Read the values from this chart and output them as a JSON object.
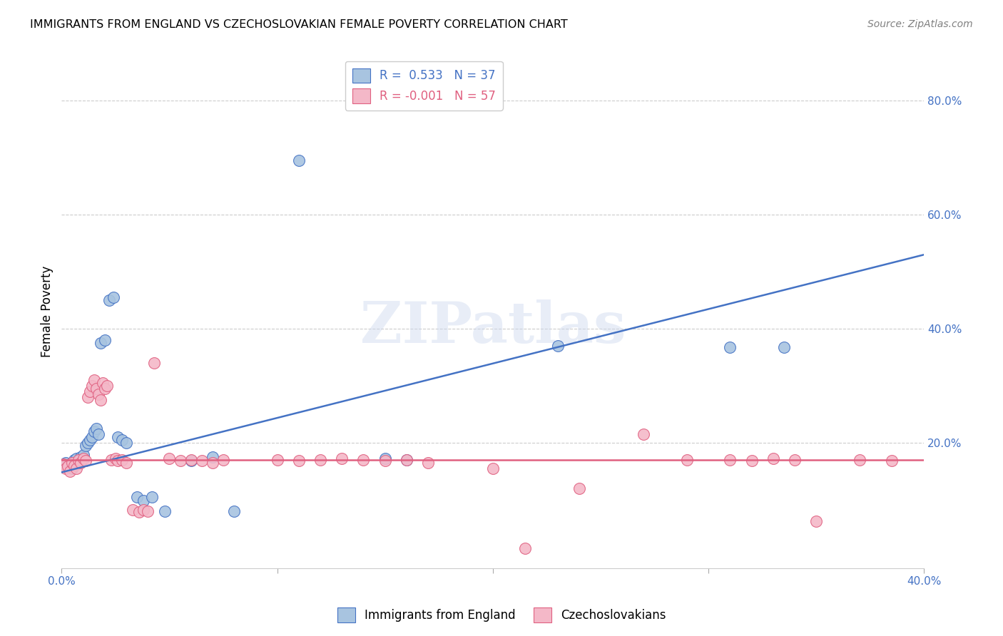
{
  "title": "IMMIGRANTS FROM ENGLAND VS CZECHOSLOVAKIAN FEMALE POVERTY CORRELATION CHART",
  "source": "Source: ZipAtlas.com",
  "ylabel": "Female Poverty",
  "xlim": [
    0.0,
    0.4
  ],
  "ylim": [
    -0.02,
    0.88
  ],
  "blue_color": "#a8c4e0",
  "pink_color": "#f4b8c8",
  "blue_line_color": "#4472c4",
  "pink_line_color": "#e06080",
  "legend_r1": "R =  0.533   N = 37",
  "legend_r2": "R = -0.001   N = 57",
  "watermark": "ZIPatlas",
  "england_points": [
    [
      0.001,
      0.16
    ],
    [
      0.002,
      0.165
    ],
    [
      0.003,
      0.158
    ],
    [
      0.004,
      0.162
    ],
    [
      0.005,
      0.155
    ],
    [
      0.006,
      0.17
    ],
    [
      0.007,
      0.172
    ],
    [
      0.008,
      0.168
    ],
    [
      0.009,
      0.175
    ],
    [
      0.01,
      0.178
    ],
    [
      0.011,
      0.195
    ],
    [
      0.012,
      0.2
    ],
    [
      0.013,
      0.205
    ],
    [
      0.014,
      0.21
    ],
    [
      0.015,
      0.22
    ],
    [
      0.016,
      0.225
    ],
    [
      0.017,
      0.215
    ],
    [
      0.018,
      0.375
    ],
    [
      0.02,
      0.38
    ],
    [
      0.022,
      0.45
    ],
    [
      0.024,
      0.455
    ],
    [
      0.026,
      0.21
    ],
    [
      0.028,
      0.205
    ],
    [
      0.03,
      0.2
    ],
    [
      0.035,
      0.105
    ],
    [
      0.038,
      0.098
    ],
    [
      0.042,
      0.105
    ],
    [
      0.048,
      0.08
    ],
    [
      0.06,
      0.168
    ],
    [
      0.07,
      0.175
    ],
    [
      0.08,
      0.08
    ],
    [
      0.11,
      0.695
    ],
    [
      0.15,
      0.172
    ],
    [
      0.16,
      0.17
    ],
    [
      0.23,
      0.37
    ],
    [
      0.31,
      0.368
    ],
    [
      0.335,
      0.368
    ]
  ],
  "czech_points": [
    [
      0.001,
      0.162
    ],
    [
      0.002,
      0.155
    ],
    [
      0.003,
      0.158
    ],
    [
      0.004,
      0.15
    ],
    [
      0.005,
      0.165
    ],
    [
      0.006,
      0.16
    ],
    [
      0.007,
      0.155
    ],
    [
      0.008,
      0.17
    ],
    [
      0.009,
      0.165
    ],
    [
      0.01,
      0.172
    ],
    [
      0.011,
      0.168
    ],
    [
      0.012,
      0.28
    ],
    [
      0.013,
      0.29
    ],
    [
      0.014,
      0.3
    ],
    [
      0.015,
      0.31
    ],
    [
      0.016,
      0.295
    ],
    [
      0.017,
      0.285
    ],
    [
      0.018,
      0.275
    ],
    [
      0.019,
      0.305
    ],
    [
      0.02,
      0.295
    ],
    [
      0.021,
      0.3
    ],
    [
      0.023,
      0.17
    ],
    [
      0.025,
      0.172
    ],
    [
      0.026,
      0.168
    ],
    [
      0.028,
      0.17
    ],
    [
      0.03,
      0.165
    ],
    [
      0.033,
      0.082
    ],
    [
      0.036,
      0.078
    ],
    [
      0.038,
      0.082
    ],
    [
      0.04,
      0.08
    ],
    [
      0.043,
      0.34
    ],
    [
      0.05,
      0.172
    ],
    [
      0.055,
      0.168
    ],
    [
      0.06,
      0.17
    ],
    [
      0.065,
      0.168
    ],
    [
      0.07,
      0.165
    ],
    [
      0.075,
      0.17
    ],
    [
      0.1,
      0.17
    ],
    [
      0.11,
      0.168
    ],
    [
      0.12,
      0.17
    ],
    [
      0.13,
      0.172
    ],
    [
      0.14,
      0.17
    ],
    [
      0.15,
      0.168
    ],
    [
      0.16,
      0.17
    ],
    [
      0.17,
      0.165
    ],
    [
      0.2,
      0.155
    ],
    [
      0.215,
      0.015
    ],
    [
      0.24,
      0.12
    ],
    [
      0.27,
      0.215
    ],
    [
      0.29,
      0.17
    ],
    [
      0.31,
      0.17
    ],
    [
      0.32,
      0.168
    ],
    [
      0.33,
      0.172
    ],
    [
      0.34,
      0.17
    ],
    [
      0.35,
      0.062
    ],
    [
      0.37,
      0.17
    ],
    [
      0.385,
      0.168
    ]
  ],
  "england_line_x": [
    0.0,
    0.4
  ],
  "england_line_y": [
    0.148,
    0.53
  ],
  "czech_line_x": [
    0.0,
    0.4
  ],
  "czech_line_y": [
    0.17,
    0.17
  ]
}
